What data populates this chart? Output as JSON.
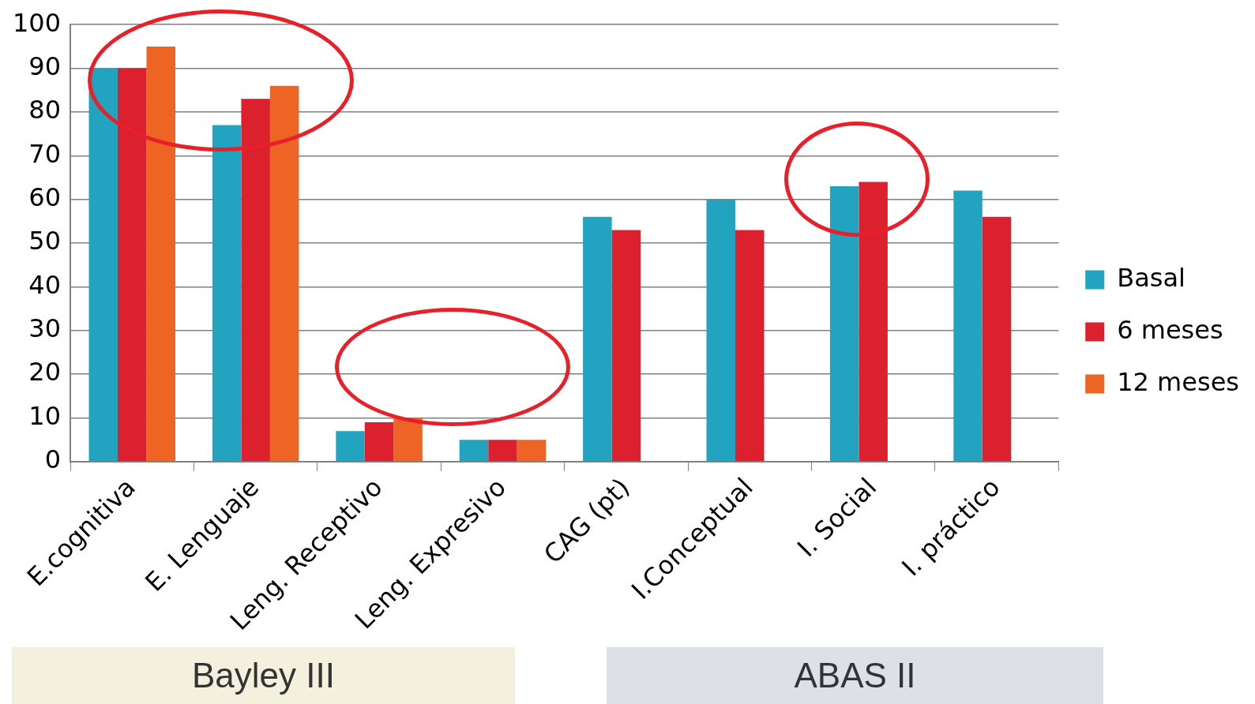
{
  "chart_data": {
    "type": "bar",
    "categories": [
      "E.cognitiva",
      "E. Lenguaje",
      "Leng. Receptivo",
      "Leng. Expresivo",
      "CAG (pt)",
      "I.Conceptual",
      "I. Social",
      "I. práctico"
    ],
    "series": [
      {
        "name": "Basal",
        "color": "#22a3c0",
        "values": [
          90,
          77,
          7,
          5,
          56,
          60,
          63,
          62
        ]
      },
      {
        "name": "6 meses",
        "color": "#dc202e",
        "values": [
          90,
          83,
          9,
          5,
          53,
          53,
          64,
          56
        ]
      },
      {
        "name": "12 meses",
        "color": "#ee6424",
        "values": [
          95,
          86,
          10,
          5,
          null,
          null,
          null,
          null
        ]
      }
    ],
    "ylim": [
      0,
      100
    ],
    "yticks": [
      0,
      10,
      20,
      30,
      40,
      50,
      60,
      70,
      80,
      90,
      100
    ],
    "grid": "y",
    "legend": "right",
    "annotations": [
      "Bayley III",
      "ABAS II"
    ]
  }
}
